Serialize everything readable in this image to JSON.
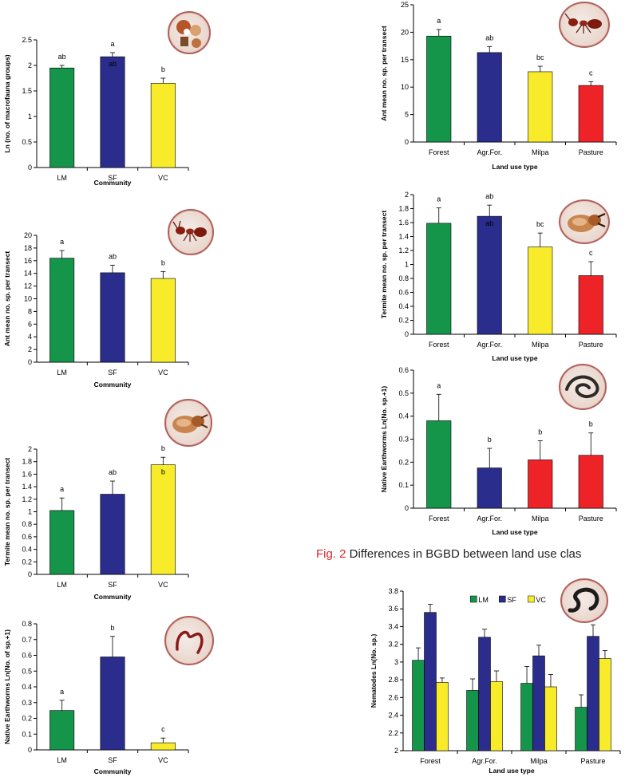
{
  "caption": {
    "fig_label": "Fig. 2",
    "text": " Differences in BGBD between land use clas"
  },
  "colors": {
    "green": "#15954a",
    "blue": "#2b2d8c",
    "yellow": "#f8ec2a",
    "red": "#ee2328"
  },
  "chart_data": [
    {
      "type": "bar",
      "xlabel": "Community",
      "ylabel": "Ln (no. of macrofauna groups)",
      "categories": [
        "LM",
        "SF",
        "VC"
      ],
      "values": [
        1.95,
        2.17,
        1.65
      ],
      "errors": [
        0.05,
        0.08,
        0.1
      ],
      "letters": [
        "ab",
        "a",
        "b"
      ],
      "inner_letters": [
        "",
        "ab",
        ""
      ],
      "ylim": [
        0,
        2.5
      ],
      "yticks": [
        "0",
        "0.5",
        "1",
        "1.5",
        "2",
        "2.5"
      ],
      "grid": false,
      "colors": [
        "green",
        "blue",
        "yellow"
      ],
      "icon": "soil-macrofauna-icon"
    },
    {
      "type": "bar",
      "xlabel": "Community",
      "ylabel": "Ant mean no. sp. per transect",
      "categories": [
        "LM",
        "SF",
        "VC"
      ],
      "values": [
        16.4,
        14.1,
        13.2
      ],
      "errors": [
        1.2,
        1.2,
        1.1
      ],
      "letters": [
        "a",
        "ab",
        "b"
      ],
      "inner_letters": [
        "",
        "",
        ""
      ],
      "ylim": [
        0,
        20
      ],
      "yticks": [
        "0",
        "2",
        "4",
        "6",
        "8",
        "10",
        "12",
        "14",
        "16",
        "18",
        "20"
      ],
      "grid": false,
      "colors": [
        "green",
        "blue",
        "yellow"
      ],
      "icon": "ant-icon"
    },
    {
      "type": "bar",
      "xlabel": "Community",
      "ylabel": "Termite mean no. sp. per transect",
      "categories": [
        "LM",
        "SF",
        "VC"
      ],
      "values": [
        1.02,
        1.28,
        1.75
      ],
      "errors": [
        0.2,
        0.21,
        0.12
      ],
      "letters": [
        "a",
        "ab",
        "b"
      ],
      "inner_letters": [
        "",
        "",
        "b"
      ],
      "ylim": [
        0,
        2
      ],
      "yticks": [
        "0",
        "0.2",
        "0.4",
        "0.6",
        "0.8",
        "1",
        "1.2",
        "1.4",
        "1.6",
        "1.8",
        "2"
      ],
      "grid": false,
      "colors": [
        "green",
        "blue",
        "yellow"
      ],
      "icon": "termite-icon"
    },
    {
      "type": "bar",
      "xlabel": "Community",
      "ylabel": "Native Earthworms Ln(No. of sp.+1)",
      "categories": [
        "LM",
        "SF",
        "VC"
      ],
      "values": [
        0.25,
        0.59,
        0.045
      ],
      "errors": [
        0.065,
        0.13,
        0.03
      ],
      "letters": [
        "a",
        "b",
        "c"
      ],
      "inner_letters": [
        "",
        "",
        ""
      ],
      "ylim": [
        0,
        0.8
      ],
      "yticks": [
        "0",
        "0.1",
        "0.2",
        "0.3",
        "0.4",
        "0.5",
        "0.6",
        "0.7",
        "0.8"
      ],
      "grid": false,
      "colors": [
        "green",
        "blue",
        "yellow"
      ],
      "icon": "earthworm-icon"
    },
    {
      "type": "bar",
      "xlabel": "Land use type",
      "ylabel": "Ant mean no. sp. per transect",
      "categories": [
        "Forest",
        "Agr.For.",
        "Milpa",
        "Pasture"
      ],
      "values": [
        19.3,
        16.3,
        12.8,
        10.3
      ],
      "errors": [
        1.2,
        1.1,
        1.0,
        0.7
      ],
      "letters": [
        "a",
        "ab",
        "bc",
        "c"
      ],
      "inner_letters": [
        "",
        "",
        "",
        ""
      ],
      "ylim": [
        0,
        25
      ],
      "yticks": [
        "0",
        "5",
        "10",
        "15",
        "20",
        "25"
      ],
      "grid": false,
      "colors": [
        "green",
        "blue",
        "yellow",
        "red"
      ],
      "icon": "ant-icon"
    },
    {
      "type": "bar",
      "xlabel": "Land use type",
      "ylabel": "Termite mean no. sp. per transect",
      "categories": [
        "Forest",
        "Agr.For.",
        "Milpa",
        "Pasture"
      ],
      "values": [
        1.59,
        1.69,
        1.25,
        0.84
      ],
      "errors": [
        0.22,
        0.16,
        0.2,
        0.2
      ],
      "letters": [
        "a",
        "ab",
        "bc",
        "c"
      ],
      "inner_letters": [
        "",
        "ab",
        "",
        ""
      ],
      "ylim": [
        0,
        2
      ],
      "yticks": [
        "0",
        "0.2",
        "0.4",
        "0.6",
        "0.8",
        "1",
        "1.2",
        "1.4",
        "1.6",
        "1.8",
        "2"
      ],
      "grid": false,
      "colors": [
        "green",
        "blue",
        "yellow",
        "red"
      ],
      "icon": "termite-icon"
    },
    {
      "type": "bar",
      "xlabel": "Land use type",
      "ylabel": "Native Earthworms Ln(No. sp.+1)",
      "categories": [
        "Forest",
        "Agr.For.",
        "Milpa",
        "Pasture"
      ],
      "values": [
        0.38,
        0.175,
        0.21,
        0.23
      ],
      "errors": [
        0.115,
        0.085,
        0.083,
        0.097
      ],
      "letters": [
        "a",
        "b",
        "b",
        "b"
      ],
      "inner_letters": [
        "",
        "",
        "",
        ""
      ],
      "ylim": [
        0,
        0.6
      ],
      "yticks": [
        "0",
        "0.1",
        "0.2",
        "0.3",
        "0.4",
        "0.5",
        "0.6"
      ],
      "grid": false,
      "colors": [
        "green",
        "blue",
        "red",
        "red"
      ],
      "icon": "earthworm-icon"
    },
    {
      "type": "bar",
      "xlabel": "Land use type",
      "ylabel": "Nematodes Ln(No. sp.)",
      "categories": [
        "Forest",
        "Agr.For.",
        "Milpa",
        "Pasture"
      ],
      "series": [
        {
          "name": "LM",
          "color": "green",
          "values": [
            3.02,
            2.68,
            2.76,
            2.49
          ],
          "errors": [
            0.14,
            0.13,
            0.19,
            0.14
          ]
        },
        {
          "name": "SF",
          "color": "blue",
          "values": [
            3.56,
            3.28,
            3.07,
            3.29
          ],
          "errors": [
            0.09,
            0.09,
            0.12,
            0.13
          ]
        },
        {
          "name": "VC",
          "color": "yellow",
          "values": [
            2.77,
            2.78,
            2.72,
            3.04
          ],
          "errors": [
            0.05,
            0.12,
            0.14,
            0.09
          ]
        }
      ],
      "legend": "top-center",
      "ylim": [
        2,
        3.8
      ],
      "yticks": [
        "2",
        "2.2",
        "2.4",
        "2.6",
        "2.8",
        "3",
        "3.2",
        "3.4",
        "3.6",
        "3.8"
      ],
      "grid": false,
      "icon": "nematode-icon"
    }
  ]
}
